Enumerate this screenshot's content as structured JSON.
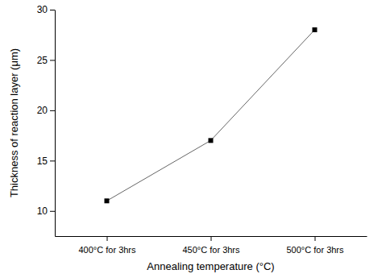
{
  "chart_data": {
    "type": "line",
    "x_label": "Annealing temperature (°C)",
    "y_label": "Thickness of reaction layer (μm)",
    "categories": [
      "400°C for 3hrs",
      "450°C for 3hrs",
      "500°C for 3hrs"
    ],
    "values": [
      11,
      17,
      28
    ],
    "color": "#000000",
    "marker": "square",
    "line_style": "solid",
    "ylim": [
      7.5,
      30
    ],
    "yticks": [
      10,
      15,
      20,
      25,
      30
    ],
    "grid": false
  }
}
